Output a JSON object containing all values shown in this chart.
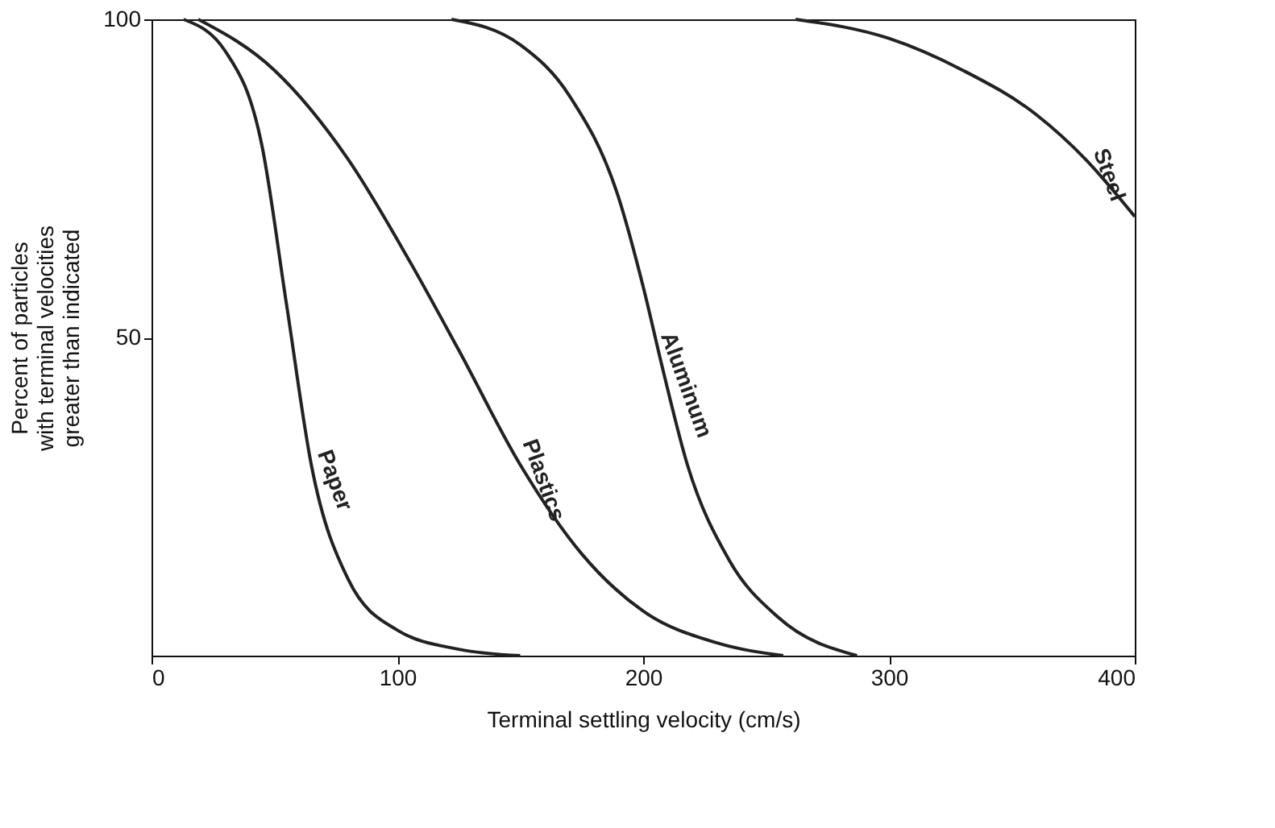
{
  "chart_data": {
    "type": "line",
    "xlabel": "Terminal settling velocity (cm/s)",
    "ylabel": "Percent of particles with terminal velocities greater than indicated",
    "xlim": [
      0,
      400
    ],
    "ylim": [
      0,
      100
    ],
    "xticks": [
      0,
      100,
      200,
      300,
      400
    ],
    "yticks": [
      50,
      100
    ],
    "grid": false,
    "marker": "none",
    "line_style": "solid",
    "series": [
      {
        "name": "Paper",
        "color": "#222222",
        "x": [
          13,
          30,
          45,
          55,
          65,
          80,
          100,
          125,
          150
        ],
        "values": [
          100,
          95,
          80,
          55,
          30,
          12,
          4,
          1,
          0
        ]
      },
      {
        "name": "Plastics",
        "color": "#222222",
        "x": [
          19,
          50,
          80,
          105,
          125,
          150,
          175,
          200,
          230,
          257
        ],
        "values": [
          100,
          92,
          78,
          62,
          48,
          30,
          16,
          7,
          2,
          0
        ]
      },
      {
        "name": "Aluminum",
        "color": "#222222",
        "x": [
          122,
          150,
          170,
          190,
          200,
          208,
          218,
          235,
          255,
          287
        ],
        "values": [
          100,
          96,
          88,
          72,
          58,
          45,
          30,
          15,
          6,
          0
        ]
      },
      {
        "name": "Steel",
        "color": "#222222",
        "x": [
          262,
          300,
          330,
          360,
          380,
          400
        ],
        "values": [
          100,
          97,
          92,
          85,
          78,
          69
        ]
      }
    ]
  }
}
